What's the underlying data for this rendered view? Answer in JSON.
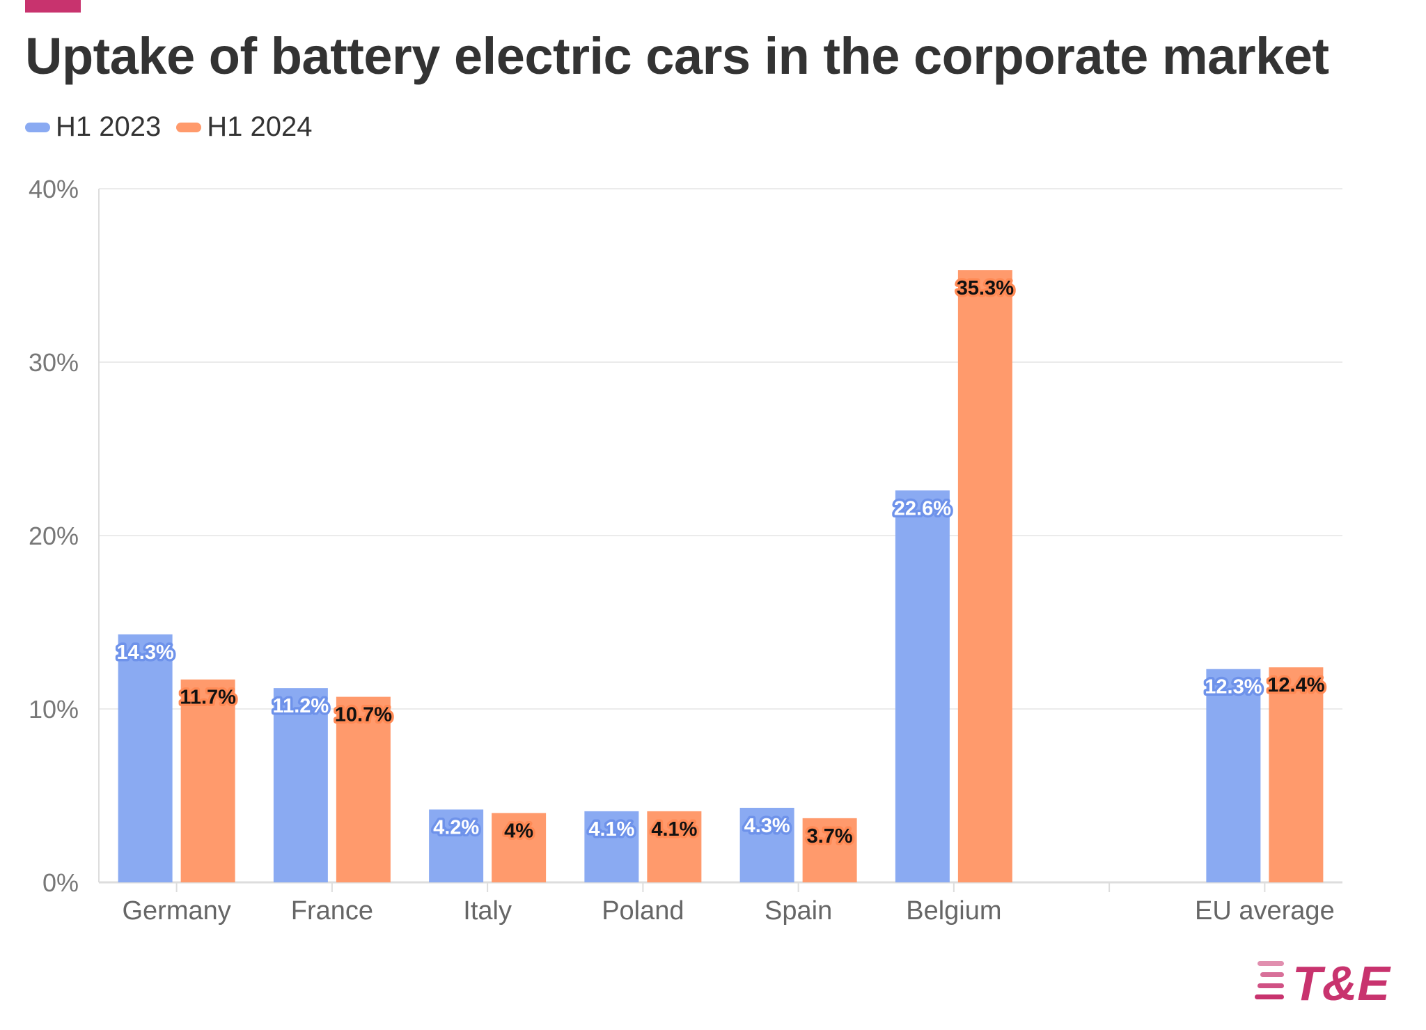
{
  "header": {
    "title": "Uptake of battery electric cars in the corporate market"
  },
  "colors": {
    "accent": "#c8336e",
    "series_2023": "#8aaaf2",
    "series_2024": "#ff9a6c",
    "logo_text": "#c8336e"
  },
  "logo": {
    "text": "T&E",
    "icon": "stripes-icon"
  },
  "chart_data": {
    "type": "bar",
    "title": "Uptake of battery electric cars in the corporate market",
    "xlabel": "",
    "ylabel": "",
    "ylim": [
      0,
      40
    ],
    "yticks": [
      "0%",
      "10%",
      "20%",
      "30%",
      "40%"
    ],
    "grid": true,
    "legend": "top-left",
    "categories": [
      "Germany",
      "France",
      "Italy",
      "Poland",
      "Spain",
      "Belgium",
      "",
      "EU average"
    ],
    "series": [
      {
        "name": "H1 2023",
        "color": "#8aaaf2",
        "values": [
          14.3,
          11.2,
          4.2,
          4.1,
          4.3,
          22.6,
          null,
          12.3
        ],
        "labels": [
          "14.3%",
          "11.2%",
          "4.2%",
          "4.1%",
          "4.3%",
          "22.6%",
          "",
          "12.3%"
        ]
      },
      {
        "name": "H1 2024",
        "color": "#ff9a6c",
        "values": [
          11.7,
          10.7,
          4.0,
          4.1,
          3.7,
          35.3,
          null,
          12.4
        ],
        "labels": [
          "11.7%",
          "10.7%",
          "4%",
          "4.1%",
          "3.7%",
          "35.3%",
          "",
          "12.4%"
        ]
      }
    ]
  }
}
